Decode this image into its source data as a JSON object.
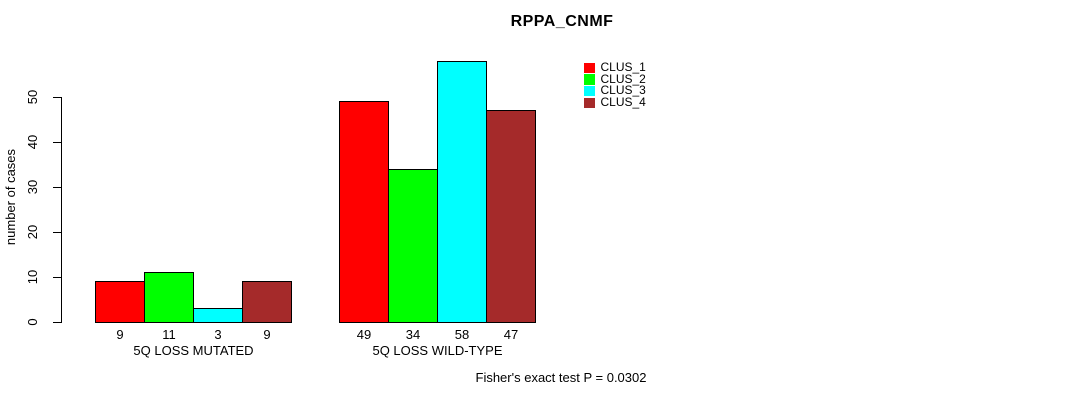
{
  "chart_data": {
    "type": "bar",
    "title": "RPPA_CNMF",
    "ylabel": "number of cases",
    "xlabel": "",
    "categories": [
      "5Q LOSS MUTATED",
      "5Q LOSS WILD-TYPE"
    ],
    "series": [
      {
        "name": "CLUS_1",
        "color": "#ff0000",
        "values": [
          9,
          49
        ]
      },
      {
        "name": "CLUS_2",
        "color": "#00ff00",
        "values": [
          11,
          34
        ]
      },
      {
        "name": "CLUS_3",
        "color": "#00ffff",
        "values": [
          3,
          58
        ]
      },
      {
        "name": "CLUS_4",
        "color": "#a52a2a",
        "values": [
          9,
          47
        ]
      }
    ],
    "bar_value_labels": [
      [
        "9",
        "11",
        "3",
        "9"
      ],
      [
        "49",
        "34",
        "58",
        "47"
      ]
    ],
    "yticks": [
      0,
      10,
      20,
      30,
      40,
      50
    ],
    "ylim": [
      0,
      58
    ],
    "grid": false,
    "legend_position": "top-right",
    "annotation": "Fisher's exact test P = 0.0302",
    "colors": {
      "axis": "#000000",
      "text": "#000000",
      "background": "#ffffff",
      "bar_border": "#000000"
    }
  }
}
